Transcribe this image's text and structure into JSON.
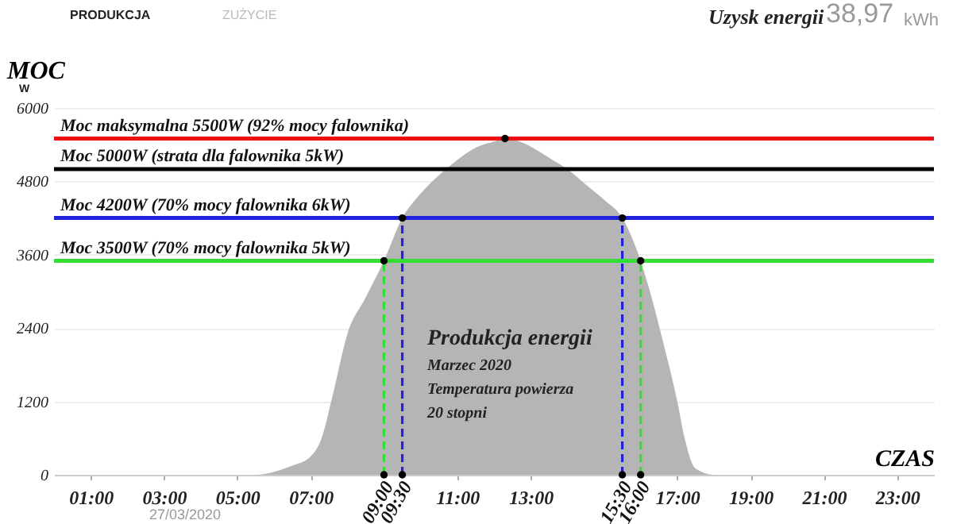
{
  "chart_data": {
    "type": "area",
    "xlabel": "CZAS",
    "ylabel": "MOC",
    "xlim": [
      0,
      24
    ],
    "ylim": [
      0,
      6000
    ],
    "xticks": [
      {
        "value": 1,
        "label": "01:00"
      },
      {
        "value": 3,
        "label": "03:00"
      },
      {
        "value": 5,
        "label": "05:00"
      },
      {
        "value": 7,
        "label": "07:00"
      },
      {
        "value": 11,
        "label": "11:00"
      },
      {
        "value": 13,
        "label": "13:00"
      },
      {
        "value": 17,
        "label": "17:00"
      },
      {
        "value": 19,
        "label": "19:00"
      },
      {
        "value": 21,
        "label": "21:00"
      },
      {
        "value": 23,
        "label": "23:00"
      }
    ],
    "yticks": [
      0,
      1200,
      2400,
      3600,
      4800,
      6000
    ],
    "grid": "y",
    "series": [
      {
        "color": "#b5b5b5",
        "marker": "none",
        "x": [
          0,
          5.5,
          6,
          6.5,
          7,
          7.3,
          7.6,
          8,
          8.5,
          9,
          9.5,
          10,
          10.5,
          11,
          11.5,
          12,
          12.3,
          12.7,
          13.2,
          13.6,
          14,
          14.5,
          15,
          15.5,
          16,
          16.3,
          16.6,
          17,
          17.2,
          17.5,
          18,
          24
        ],
        "values": [
          0,
          0,
          50,
          150,
          300,
          600,
          1300,
          2300,
          2900,
          3500,
          4200,
          4600,
          4900,
          5150,
          5350,
          5450,
          5500,
          5450,
          5300,
          5150,
          5000,
          4750,
          4500,
          4200,
          3500,
          2900,
          2200,
          1200,
          600,
          100,
          0,
          0
        ]
      },
      {
        "type": "line",
        "color": "#33dd33",
        "line_style": "dashed",
        "marker": "circle",
        "x": [
          9,
          9
        ],
        "values": [
          0,
          3500
        ]
      },
      {
        "type": "line",
        "color": "#2222dd",
        "line_style": "dashed",
        "marker": "circle",
        "x": [
          9.5,
          9.5
        ],
        "values": [
          0,
          4200
        ]
      },
      {
        "type": "line",
        "color": "#2222dd",
        "line_style": "dashed",
        "marker": "circle",
        "x": [
          15.5,
          15.5
        ],
        "values": [
          0,
          4200
        ]
      },
      {
        "type": "line",
        "color": "#33dd33",
        "line_style": "dashed",
        "marker": "circle",
        "x": [
          16,
          16
        ],
        "values": [
          0,
          3500
        ]
      },
      {
        "type": "scatter",
        "color": "#000000",
        "marker": "circle",
        "x": [
          12.3
        ],
        "values": [
          5500
        ]
      }
    ],
    "ref_lines": [
      {
        "axis": "y",
        "value": 5500,
        "label": "Moc maksymalna 5500W (92% mocy falownika)",
        "color": "#ee1111"
      },
      {
        "axis": "y",
        "value": 5000,
        "label": "Moc 5000W (strata dla falownika 5kW)",
        "color": "#000000"
      },
      {
        "axis": "y",
        "value": 4200,
        "label": "Moc 4200W (70% mocy falownika 6kW)",
        "color": "#2222dd"
      },
      {
        "axis": "y",
        "value": 3500,
        "label": "Moc 3500W (70% mocy falownika 5kW)",
        "color": "#33dd33"
      }
    ],
    "annotations": [
      "PRODUKCJA",
      "ZUŻYCIE",
      "Uzysk energii",
      "38,97",
      "kWh",
      "W",
      "Produkcja energii",
      "Marzec 2020",
      "Temperatura powierza",
      "20 stopni",
      "27/03/2020",
      {
        "text": "09:00",
        "x": 9,
        "y": 0
      },
      {
        "text": "09:30",
        "x": 9.5,
        "y": 0
      },
      {
        "text": "15:30",
        "x": 15.5,
        "y": 0
      },
      {
        "text": "16:00",
        "x": 16,
        "y": 0
      }
    ]
  }
}
